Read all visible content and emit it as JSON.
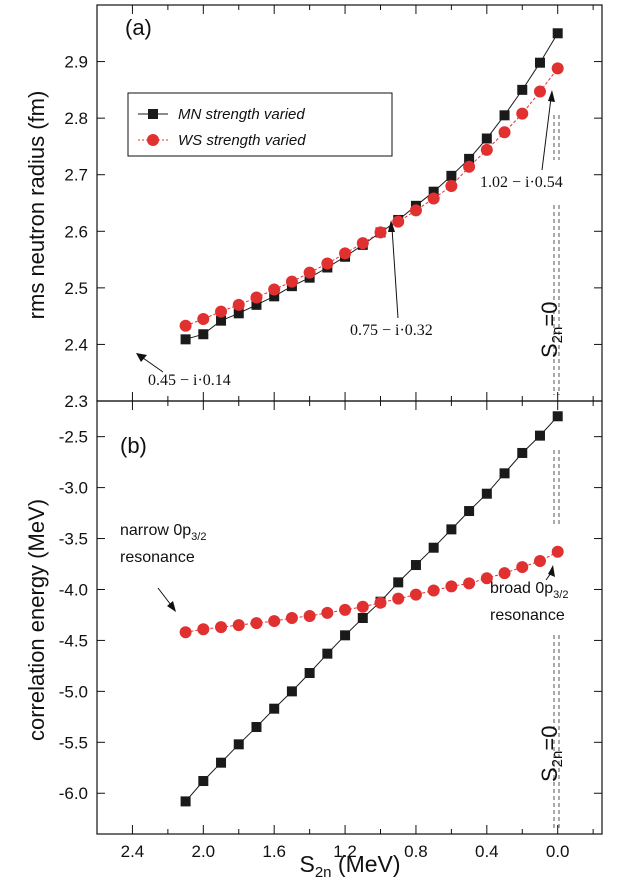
{
  "chart_data": [
    {
      "panel": "(a)",
      "type": "line",
      "xlabel": "",
      "ylabel": "rms neutron radius (fm)",
      "xlim": [
        2.6,
        -0.25
      ],
      "ylim": [
        2.3,
        3.0
      ],
      "yticks": [
        "2.3",
        "2.4",
        "2.5",
        "2.6",
        "2.7",
        "2.8",
        "2.9"
      ],
      "legend": {
        "placement": "upper-left",
        "entries": [
          "MN strength varied",
          "WS strength varied"
        ]
      },
      "series": [
        {
          "name": "MN strength varied",
          "color": "#1a1a1a",
          "marker": "square",
          "x": [
            2.1,
            2.0,
            1.9,
            1.8,
            1.7,
            1.6,
            1.5,
            1.4,
            1.3,
            1.2,
            1.1,
            1.0,
            0.9,
            0.8,
            0.7,
            0.6,
            0.5,
            0.4,
            0.3,
            0.2,
            0.1,
            0.0
          ],
          "y": [
            2.409,
            2.418,
            2.442,
            2.455,
            2.47,
            2.485,
            2.503,
            2.518,
            2.536,
            2.555,
            2.576,
            2.598,
            2.62,
            2.645,
            2.67,
            2.698,
            2.728,
            2.764,
            2.805,
            2.85,
            2.898,
            2.95
          ]
        },
        {
          "name": "WS strength varied",
          "color": "#e03030",
          "marker": "circle",
          "x": [
            2.1,
            2.0,
            1.9,
            1.8,
            1.7,
            1.6,
            1.5,
            1.4,
            1.3,
            1.2,
            1.1,
            1.0,
            0.9,
            0.8,
            0.7,
            0.6,
            0.5,
            0.4,
            0.3,
            0.2,
            0.1,
            0.0
          ],
          "y": [
            2.433,
            2.445,
            2.458,
            2.47,
            2.483,
            2.497,
            2.511,
            2.527,
            2.543,
            2.561,
            2.579,
            2.598,
            2.617,
            2.637,
            2.658,
            2.68,
            2.714,
            2.744,
            2.775,
            2.808,
            2.847,
            2.888
          ]
        }
      ],
      "annotations": [
        {
          "text": "0.45 − i·0.14",
          "x": 2.1,
          "y": 2.409
        },
        {
          "text": "0.75 − i·0.32",
          "x": 0.9,
          "y": 2.62
        },
        {
          "text": "1.02 − i·0.54",
          "x": 0.0,
          "y": 2.888
        },
        {
          "text": "S2n=0"
        }
      ]
    },
    {
      "panel": "(b)",
      "type": "line",
      "xlabel": "S2n (MeV)",
      "ylabel": "correlation energy (MeV)",
      "xlim": [
        2.6,
        -0.25
      ],
      "ylim": [
        -6.4,
        -2.15
      ],
      "xticks": [
        "2.4",
        "2.0",
        "1.6",
        "1.2",
        "0.8",
        "0.4",
        "0.0"
      ],
      "yticks": [
        "-6.0",
        "-5.5",
        "-5.0",
        "-4.5",
        "-4.0",
        "-3.5",
        "-3.0",
        "-2.5"
      ],
      "series": [
        {
          "name": "MN strength varied",
          "color": "#1a1a1a",
          "marker": "square",
          "x": [
            2.1,
            2.0,
            1.9,
            1.8,
            1.7,
            1.6,
            1.5,
            1.4,
            1.3,
            1.2,
            1.1,
            1.0,
            0.9,
            0.8,
            0.7,
            0.6,
            0.5,
            0.4,
            0.3,
            0.2,
            0.1,
            0.0
          ],
          "y": [
            -6.08,
            -5.88,
            -5.7,
            -5.52,
            -5.35,
            -5.17,
            -5.0,
            -4.82,
            -4.63,
            -4.45,
            -4.28,
            -4.12,
            -3.93,
            -3.76,
            -3.59,
            -3.41,
            -3.23,
            -3.06,
            -2.86,
            -2.66,
            -2.49,
            -2.3
          ]
        },
        {
          "name": "WS strength varied",
          "color": "#e03030",
          "marker": "circle",
          "x": [
            2.1,
            2.0,
            1.9,
            1.8,
            1.7,
            1.6,
            1.5,
            1.4,
            1.3,
            1.2,
            1.1,
            1.0,
            0.9,
            0.8,
            0.7,
            0.6,
            0.5,
            0.4,
            0.3,
            0.2,
            0.1,
            0.0
          ],
          "y": [
            -4.42,
            -4.39,
            -4.37,
            -4.35,
            -4.33,
            -4.31,
            -4.28,
            -4.26,
            -4.23,
            -4.2,
            -4.17,
            -4.13,
            -4.09,
            -4.05,
            -4.01,
            -3.97,
            -3.94,
            -3.89,
            -3.84,
            -3.78,
            -3.72,
            -3.63
          ]
        }
      ],
      "annotations": [
        {
          "text": "narrow 0p",
          "sub": "3/2",
          "line2": "resonance",
          "x": 2.1,
          "y": -4.42
        },
        {
          "text": "broad 0p",
          "sub": "3/2",
          "line2": "resonance",
          "x": 0.0,
          "y": -3.63
        },
        {
          "text": "S2n=0"
        }
      ]
    }
  ],
  "labels": {
    "panel_a_tag": "(a)",
    "panel_b_tag": "(b)",
    "ylabel_a": "rms neutron radius (fm)",
    "ylabel_b": "correlation energy (MeV)",
    "xlabel_main": "S",
    "xlabel_sub": "2n",
    "xlabel_unit": " (MeV)",
    "legend_mn": "MN strength varied",
    "legend_ws": "WS strength varied",
    "anno_a1": "0.45 − i·0.14",
    "anno_a2": "0.75 − i·0.32",
    "anno_a3": "1.02 − i·0.54",
    "anno_b1_main": "narrow  0p",
    "anno_b1_sub": "3/2",
    "anno_b1_line2": "resonance",
    "anno_b2_main": "broad  0p",
    "anno_b2_sub": "3/2",
    "anno_b2_line2": "resonance",
    "s2n_main": "S",
    "s2n_sub": "2n",
    "s2n_eq": "=0"
  },
  "colors": {
    "mn": "#1a1a1a",
    "ws": "#e03030",
    "axis": "#111111"
  }
}
